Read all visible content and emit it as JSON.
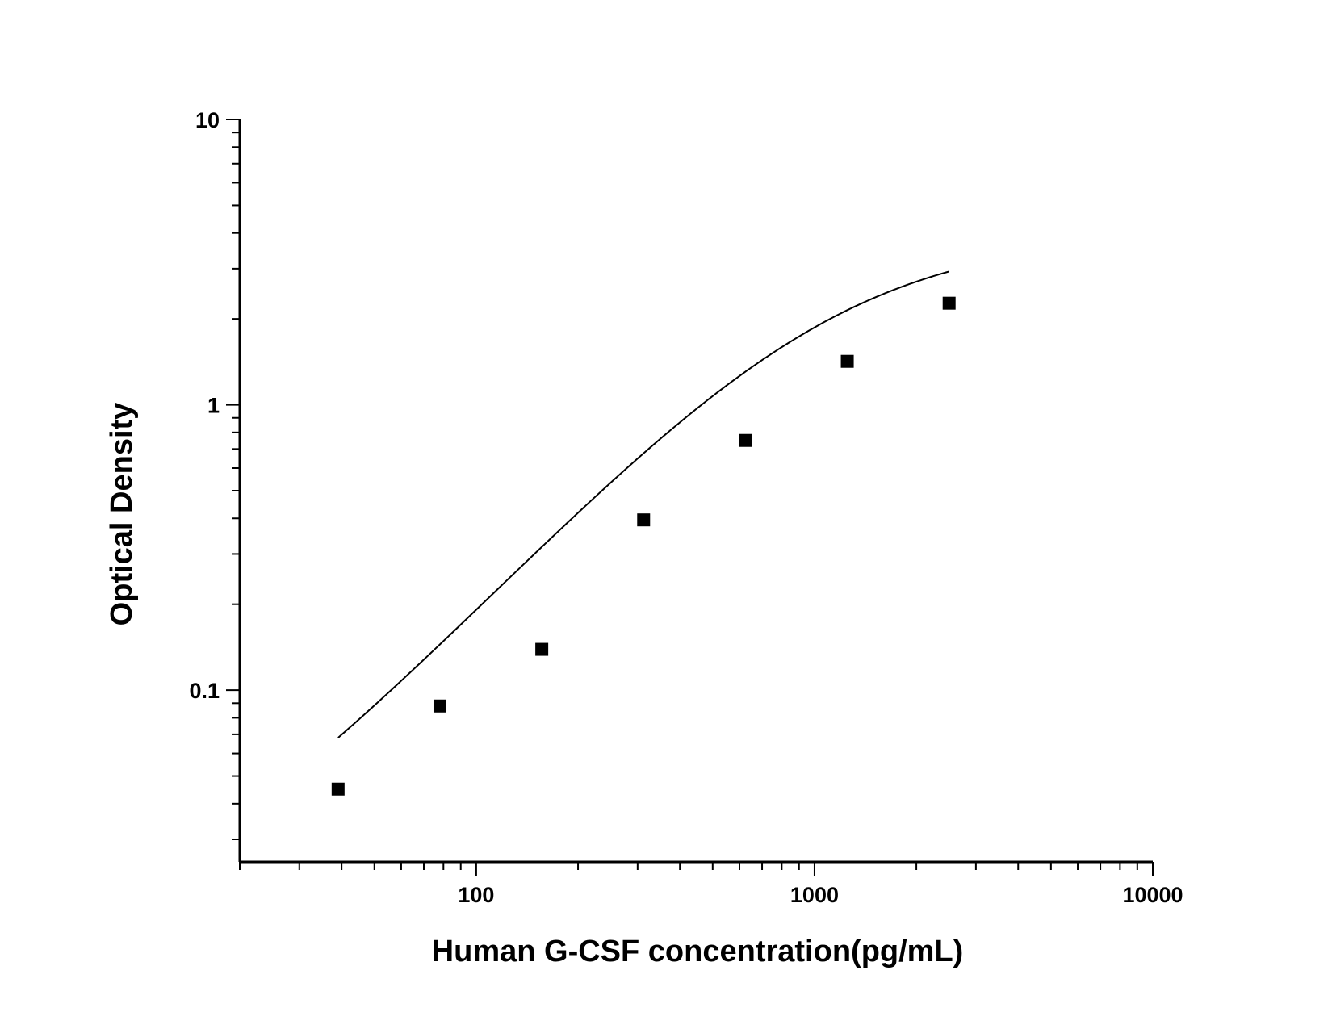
{
  "chart_data": {
    "type": "scatter",
    "title": "",
    "xlabel": "Human G-CSF concentration(pg/mL)",
    "ylabel": "Optical Density",
    "x_scale": "log",
    "y_scale": "log",
    "xlim": [
      20,
      10000
    ],
    "ylim": [
      0.025,
      10
    ],
    "x_ticks": [
      {
        "value": 100,
        "label": "100"
      },
      {
        "value": 1000,
        "label": "1000"
      },
      {
        "value": 10000,
        "label": "10000"
      }
    ],
    "y_ticks": [
      {
        "value": 0.1,
        "label": "0.1"
      },
      {
        "value": 1,
        "label": "1"
      },
      {
        "value": 10,
        "label": "10"
      }
    ],
    "grid": false,
    "legend": "none",
    "series": [
      {
        "marker": "square",
        "color": "#000000",
        "points": [
          {
            "x": 39.06,
            "y": 0.045
          },
          {
            "x": 78.13,
            "y": 0.088
          },
          {
            "x": 156.25,
            "y": 0.139
          },
          {
            "x": 312.5,
            "y": 0.395
          },
          {
            "x": 625,
            "y": 0.75
          },
          {
            "x": 1250,
            "y": 1.42
          },
          {
            "x": 2500,
            "y": 2.27
          }
        ]
      }
    ],
    "fit_curve": {
      "type": "4PL",
      "color": "#000000",
      "x_range": [
        39.06,
        2500
      ],
      "params": {
        "A": 0.012,
        "B": 1.27,
        "C": 1100,
        "D": 3.96
      }
    }
  }
}
